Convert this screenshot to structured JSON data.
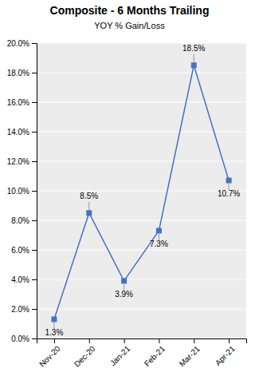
{
  "chart_data": {
    "type": "line",
    "title": "Composite - 6 Months Trailing",
    "subtitle": "YOY % Gain/Loss",
    "categories": [
      "Nov-20",
      "Dec-20",
      "Jan-21",
      "Feb-21",
      "Mar-21",
      "Apr-21"
    ],
    "values": [
      1.3,
      8.5,
      3.9,
      7.3,
      18.5,
      10.7
    ],
    "value_labels": [
      "1.3%",
      "8.5%",
      "3.9%",
      "7.3%",
      "18.5%",
      "10.7%"
    ],
    "data_labels": true,
    "color": "#4472C4",
    "marker": "square",
    "ylim": [
      0.0,
      20.0
    ],
    "yticks": [
      {
        "value": 0.0,
        "label": "0.0%"
      },
      {
        "value": 2.0,
        "label": "2.0%"
      },
      {
        "value": 4.0,
        "label": "4.0%"
      },
      {
        "value": 6.0,
        "label": "6.0%"
      },
      {
        "value": 8.0,
        "label": "8.0%"
      },
      {
        "value": 10.0,
        "label": "10.0%"
      },
      {
        "value": 12.0,
        "label": "12.0%"
      },
      {
        "value": 14.0,
        "label": "14.0%"
      },
      {
        "value": 16.0,
        "label": "16.0%"
      },
      {
        "value": 18.0,
        "label": "18.0%"
      },
      {
        "value": 20.0,
        "label": "20.0%"
      }
    ],
    "grid": true
  }
}
